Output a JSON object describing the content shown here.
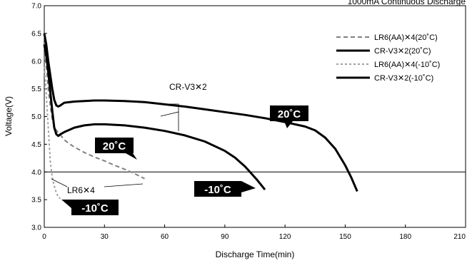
{
  "chart_data": {
    "type": "line",
    "title": "1000mA Continuous Discharge",
    "xlabel": "Discharge Time(min)",
    "ylabel": "Voltage(V)",
    "xlim": [
      0,
      210
    ],
    "ylim": [
      3.0,
      7.0
    ],
    "x_ticks": [
      "0",
      "30",
      "60",
      "90",
      "120",
      "150",
      "180",
      "210"
    ],
    "y_ticks": [
      "3.0",
      "3.5",
      "4.0",
      "4.5",
      "5.0",
      "5.5",
      "6.0",
      "6.5",
      "7.0"
    ],
    "reference_line": 4.0,
    "grid": false,
    "legend_position": "top-right",
    "series": [
      {
        "name": "LR6(AA)✕4(20˚C)",
        "style": "dashed",
        "color": "#808080",
        "points": [
          [
            0,
            6.3
          ],
          [
            1,
            5.9
          ],
          [
            2,
            5.5
          ],
          [
            3,
            5.2
          ],
          [
            4,
            4.95
          ],
          [
            5,
            4.82
          ],
          [
            6,
            4.75
          ],
          [
            8,
            4.67
          ],
          [
            10,
            4.58
          ],
          [
            12,
            4.52
          ],
          [
            15,
            4.45
          ],
          [
            20,
            4.35
          ],
          [
            25,
            4.27
          ],
          [
            30,
            4.2
          ],
          [
            35,
            4.12
          ],
          [
            40,
            4.05
          ],
          [
            45,
            3.97
          ],
          [
            50,
            3.88
          ]
        ]
      },
      {
        "name": "CR-V3✕2(20˚C)",
        "style": "solid",
        "color": "#000000",
        "points": [
          [
            0,
            6.5
          ],
          [
            1,
            6.3
          ],
          [
            2,
            6.0
          ],
          [
            3,
            5.75
          ],
          [
            4,
            5.5
          ],
          [
            5,
            5.3
          ],
          [
            6,
            5.2
          ],
          [
            7,
            5.18
          ],
          [
            8,
            5.2
          ],
          [
            10,
            5.25
          ],
          [
            15,
            5.27
          ],
          [
            20,
            5.28
          ],
          [
            25,
            5.29
          ],
          [
            30,
            5.29
          ],
          [
            40,
            5.28
          ],
          [
            50,
            5.26
          ],
          [
            60,
            5.22
          ],
          [
            70,
            5.18
          ],
          [
            80,
            5.13
          ],
          [
            90,
            5.08
          ],
          [
            100,
            5.03
          ],
          [
            110,
            4.97
          ],
          [
            120,
            4.9
          ],
          [
            130,
            4.82
          ],
          [
            135,
            4.75
          ],
          [
            140,
            4.62
          ],
          [
            145,
            4.42
          ],
          [
            150,
            4.12
          ],
          [
            153,
            3.9
          ],
          [
            156,
            3.65
          ]
        ]
      },
      {
        "name": "LR6(AA)✕4(-10˚C)",
        "style": "dotted",
        "color": "#a0a0a0",
        "points": [
          [
            0,
            5.9
          ],
          [
            1,
            5.4
          ],
          [
            2,
            4.8
          ],
          [
            3,
            4.2
          ],
          [
            4,
            3.9
          ],
          [
            5,
            3.75
          ],
          [
            6,
            3.62
          ],
          [
            7,
            3.55
          ],
          [
            8,
            3.52
          ]
        ]
      },
      {
        "name": "CR-V3✕2(-10˚C)",
        "style": "solid",
        "color": "#000000",
        "points": [
          [
            0,
            6.3
          ],
          [
            1,
            6.1
          ],
          [
            2,
            5.8
          ],
          [
            3,
            5.45
          ],
          [
            4,
            5.1
          ],
          [
            5,
            4.8
          ],
          [
            6,
            4.68
          ],
          [
            7,
            4.65
          ],
          [
            8,
            4.68
          ],
          [
            10,
            4.72
          ],
          [
            15,
            4.8
          ],
          [
            20,
            4.84
          ],
          [
            25,
            4.86
          ],
          [
            30,
            4.86
          ],
          [
            40,
            4.84
          ],
          [
            50,
            4.8
          ],
          [
            60,
            4.74
          ],
          [
            70,
            4.66
          ],
          [
            80,
            4.55
          ],
          [
            90,
            4.38
          ],
          [
            95,
            4.26
          ],
          [
            100,
            4.1
          ],
          [
            103,
            3.98
          ],
          [
            106,
            3.86
          ],
          [
            110,
            3.68
          ]
        ]
      }
    ],
    "annotations": [
      {
        "id": "cr-v3",
        "text": "CR-V3✕2"
      },
      {
        "id": "lr6",
        "text": "LR6✕4"
      },
      {
        "id": "badge-cr20",
        "text": "20˚C"
      },
      {
        "id": "badge-lr20",
        "text": "20˚C"
      },
      {
        "id": "badge-cr10",
        "text": "-10˚C"
      },
      {
        "id": "badge-lr10",
        "text": "-10˚C"
      }
    ]
  }
}
